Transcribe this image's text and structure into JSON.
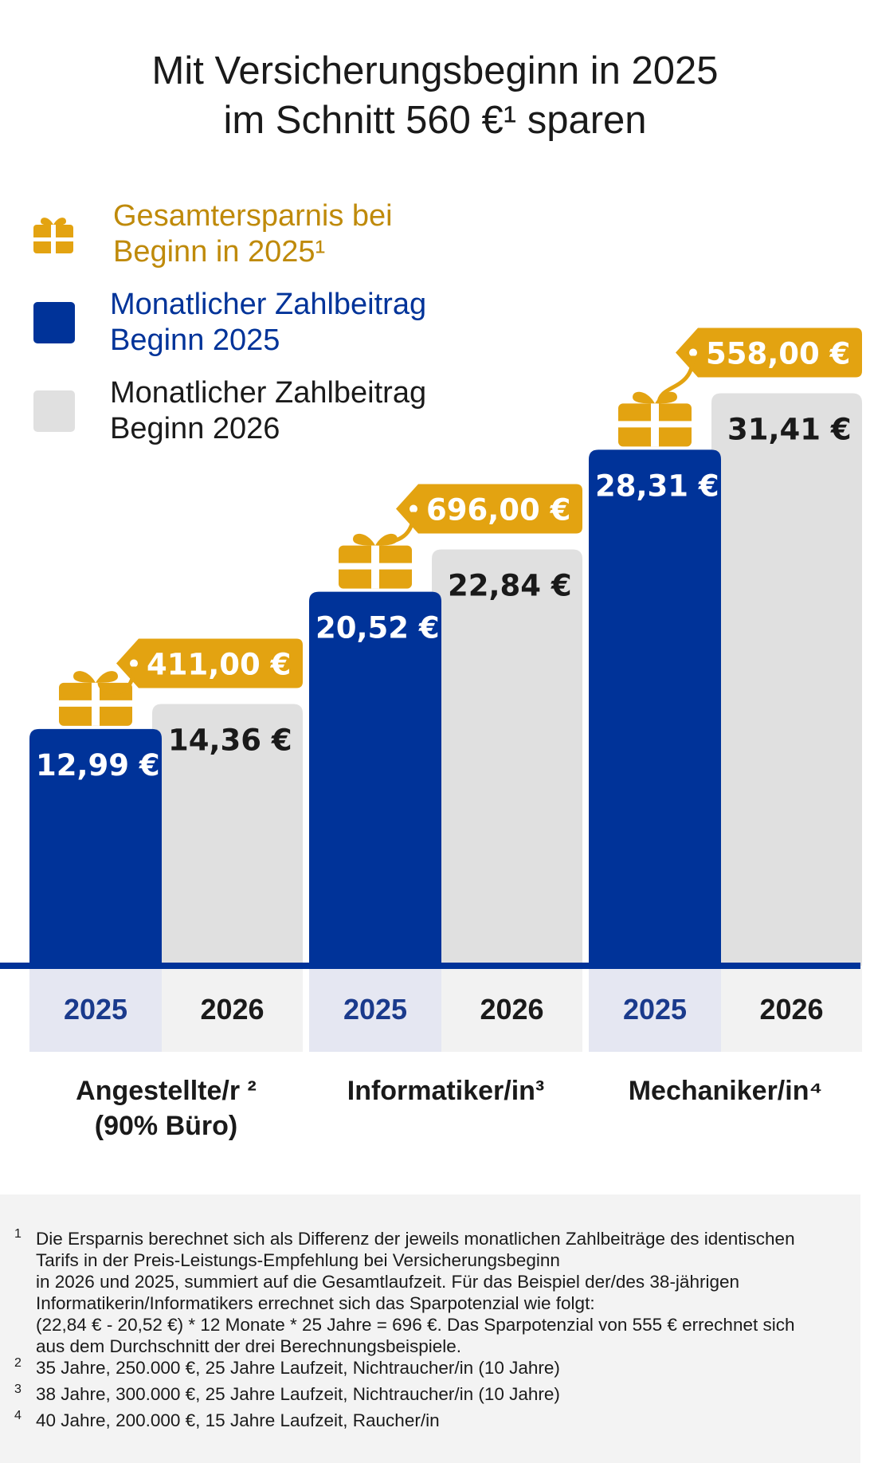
{
  "title": {
    "line1": "Mit Versicherungsbeginn in 2025",
    "line2": "im Schnitt 560 €¹ sparen"
  },
  "legend": {
    "savings": {
      "line1": "Gesamtersparnis bei",
      "line2": "Beginn in 2025¹",
      "icon": "gift-icon",
      "color": "#e3a311"
    },
    "start_2025": {
      "line1": "Monatlicher Zahlbeitrag",
      "line2": "Beginn 2025",
      "color": "#003399"
    },
    "start_2026": {
      "line1": "Monatlicher Zahlbeitrag",
      "line2": "Beginn 2026",
      "color": "#e0e0e0"
    }
  },
  "chart_data": {
    "type": "bar",
    "categories": [
      "Angestellte/r ² (90% Büro)",
      "Informatiker/in³",
      "Mechaniker/in⁴"
    ],
    "category_lines": [
      [
        "Angestellte/r ²",
        "(90% Büro)"
      ],
      [
        "Informatiker/in³"
      ],
      [
        "Mechaniker/in⁴"
      ]
    ],
    "axis_labels": [
      "2025",
      "2026"
    ],
    "series": [
      {
        "name": "Monatlicher Zahlbeitrag Beginn 2025",
        "values": [
          12.99,
          20.52,
          28.31
        ],
        "labels": [
          "12,99 €",
          "20,52 €",
          "28,31 €"
        ],
        "color": "#003399"
      },
      {
        "name": "Monatlicher Zahlbeitrag Beginn 2026",
        "values": [
          14.36,
          22.84,
          31.41
        ],
        "labels": [
          "14,36 €",
          "22,84 €",
          "31,41 €"
        ],
        "color": "#e0e0e0"
      }
    ],
    "savings": {
      "name": "Gesamtersparnis bei Beginn in 2025¹",
      "values": [
        411.0,
        696.0,
        558.0
      ],
      "labels": [
        "411,00 €",
        "696,00 €",
        "558,00 €"
      ],
      "color": "#e3a311"
    },
    "ylim": [
      0,
      32
    ],
    "grid": false
  },
  "footnotes": [
    {
      "mark": "1",
      "lines": [
        "Die Ersparnis berechnet sich als Differenz der jeweils monatlichen Zahlbeiträge des identischen",
        "Tarifs in der Preis-Leistungs-Empfehlung bei Versicherungsbeginn",
        "in 2026 und 2025, summiert auf die Gesamtlaufzeit. Für das Beispiel der/des 38-jährigen",
        "Informatikerin/Informatikers errechnet sich das Sparpotenzial wie folgt:",
        "(22,84 € - 20,52 €) * 12 Monate * 25 Jahre = 696 €. Das Sparpotenzial von 555 € errechnet sich",
        "aus dem Durchschnitt der drei Berechnungsbeispiele."
      ]
    },
    {
      "mark": "2",
      "lines": [
        "35 Jahre, 250.000 €, 25 Jahre Laufzeit, Nichtraucher/in (10 Jahre)"
      ]
    },
    {
      "mark": "3",
      "lines": [
        "38 Jahre, 300.000 €, 25 Jahre Laufzeit, Nichtraucher/in (10 Jahre)"
      ]
    },
    {
      "mark": "4",
      "lines": [
        "40 Jahre, 200.000 €, 15 Jahre Laufzeit, Raucher/in"
      ]
    }
  ]
}
